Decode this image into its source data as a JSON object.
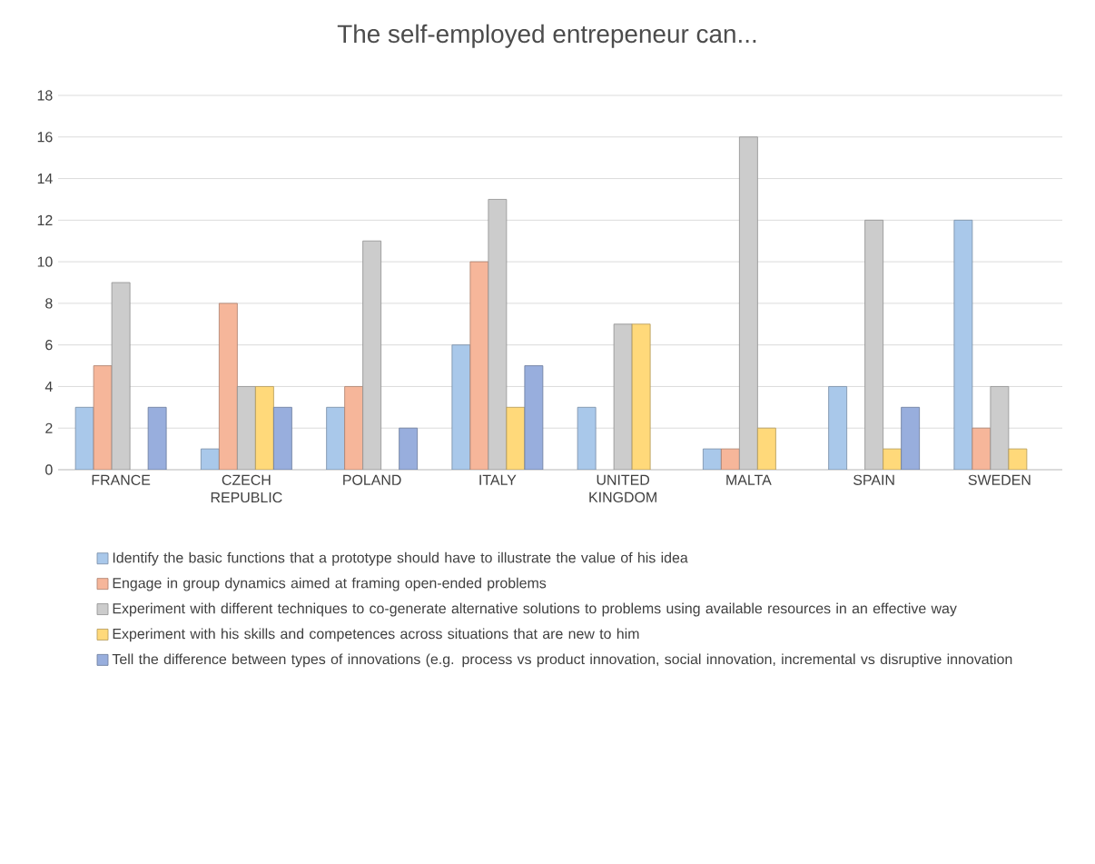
{
  "chart_data": {
    "type": "bar",
    "title": "The self-employed entrepeneur can...",
    "categories": [
      "FRANCE",
      "CZECH REPUBLIC",
      "POLAND",
      "ITALY",
      "UNITED KINGDOM",
      "MALTA",
      "SPAIN",
      "SWEDEN"
    ],
    "series": [
      {
        "name": "Identify the basic functions that a prototype should have to illustrate the value of his idea",
        "color": "#a9c8ea",
        "values": [
          3,
          1,
          3,
          6,
          3,
          1,
          4,
          12
        ]
      },
      {
        "name": "Engage in group dynamics aimed at framing open-ended problems",
        "color": "#f6b69a",
        "values": [
          5,
          8,
          4,
          10,
          null,
          1,
          null,
          2
        ]
      },
      {
        "name": "Experiment with different techniques to co-generate alternative solutions to problems using available resources in an effective way",
        "color": "#cccccc",
        "values": [
          9,
          4,
          11,
          13,
          7,
          16,
          12,
          4
        ]
      },
      {
        "name": "Experiment with his skills and competences across situations that are new to him",
        "color": "#ffd97a",
        "values": [
          null,
          4,
          null,
          3,
          7,
          2,
          1,
          1
        ]
      },
      {
        "name": "Tell the difference between types of innovations (e.g. process vs product innovation, social innovation, incremental vs disruptive innovation",
        "color": "#98aedd",
        "values": [
          3,
          3,
          2,
          5,
          null,
          null,
          3,
          null
        ]
      }
    ],
    "ylim": [
      0,
      18
    ],
    "yticks": [
      0,
      2,
      4,
      6,
      8,
      10,
      12,
      14,
      16,
      18
    ],
    "grid": "y",
    "legend": "bottom"
  }
}
